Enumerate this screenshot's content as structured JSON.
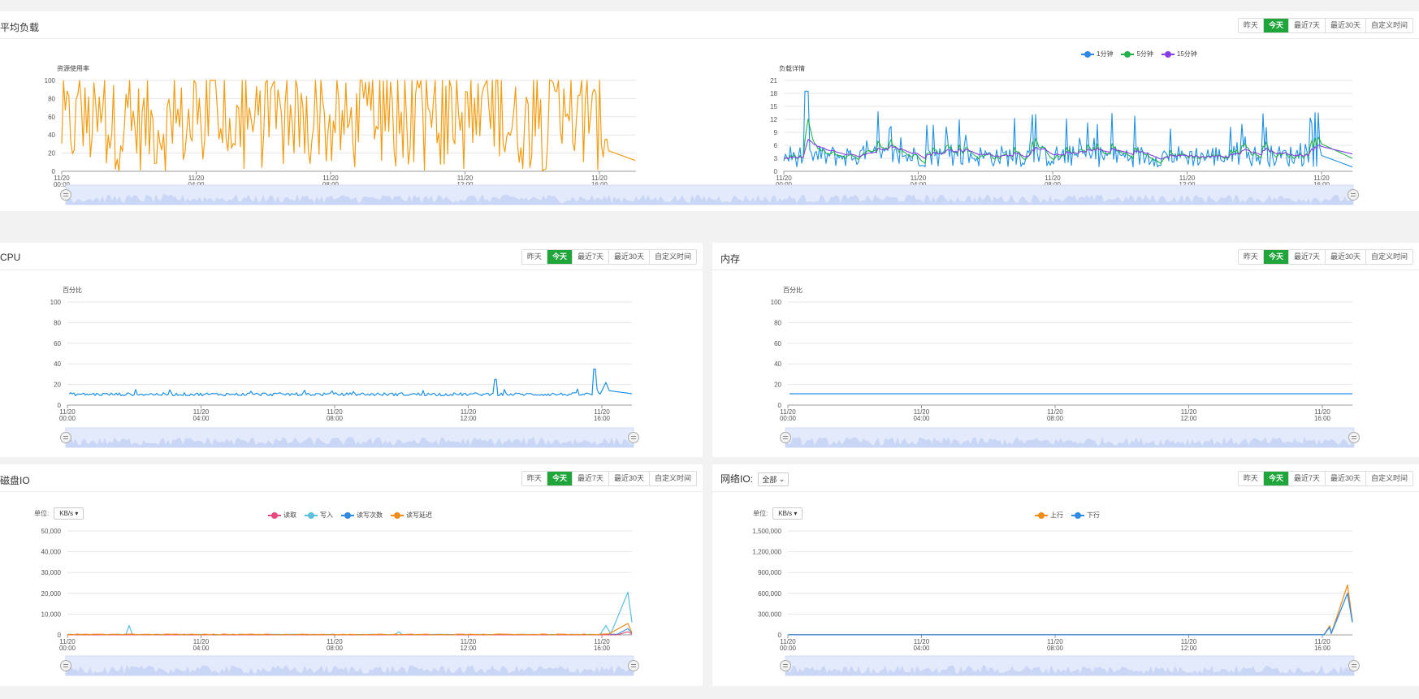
{
  "range_buttons": [
    "昨天",
    "今天",
    "最近7天",
    "最近30天",
    "自定义时间"
  ],
  "active_range": "今天",
  "load_panel": {
    "title": "平均负载",
    "left_chart": {
      "type": "line",
      "ylabel": "资源使用率",
      "yticks": [
        "100",
        "80",
        "60",
        "40",
        "20",
        "0"
      ],
      "ylim": [
        0,
        100
      ],
      "xticks": [
        "11/20\n00:00",
        "11/20\n04:00",
        "11/20\n08:00",
        "11/20\n12:00",
        "11/20\n16:00"
      ],
      "series": [
        {
          "color": "#f39c12",
          "values": "oscillating 0–100 from 00:00 to ~16:20, then declining to ~12"
        }
      ]
    },
    "right_chart": {
      "type": "line",
      "ylabel": "负载详情",
      "yticks": [
        "21",
        "18",
        "15",
        "12",
        "9",
        "6",
        "3",
        "0"
      ],
      "ylim": [
        0,
        21
      ],
      "legend": [
        "1分钟",
        "5分钟",
        "15分钟"
      ],
      "xticks": [
        "11/20\n00:00",
        "11/20\n04:00",
        "11/20\n08:00",
        "11/20\n12:00",
        "11/20\n16:00"
      ]
    }
  },
  "cpu_panel": {
    "title": "CPU",
    "ylabel": "百分比",
    "yticks": [
      "100",
      "80",
      "60",
      "40",
      "20",
      "0"
    ],
    "xticks": [
      "11/20\n00:00",
      "11/20\n04:00",
      "11/20\n08:00",
      "11/20\n12:00",
      "11/20\n16:00"
    ]
  },
  "memory_panel": {
    "title": "内存",
    "ylabel": "百分比",
    "yticks": [
      "100",
      "80",
      "60",
      "40",
      "20",
      "0"
    ],
    "xticks": [
      "11/20\n00:00",
      "11/20\n04:00",
      "11/20\n08:00",
      "11/20\n12:00",
      "11/20\n16:00"
    ]
  },
  "disk_panel": {
    "title": "磁盘IO",
    "unit_label": "单位:",
    "unit_value": "KB/s",
    "legend": [
      "读取",
      "写入",
      "读写次数",
      "读写延迟"
    ],
    "yticks": [
      "50,000",
      "40,000",
      "30,000",
      "20,000",
      "10,000",
      "0"
    ],
    "xticks": [
      "11/20\n00:00",
      "11/20\n04:00",
      "11/20\n08:00",
      "11/20\n12:00",
      "11/20\n16:00"
    ]
  },
  "network_panel": {
    "title": "网络IO:",
    "select_value": "全部",
    "unit_label": "单位:",
    "unit_value": "KB/s",
    "legend": [
      "上行",
      "下行"
    ],
    "yticks": [
      "1,500,000",
      "1,200,000",
      "900,000",
      "600,000",
      "300,000",
      "0"
    ],
    "xticks": [
      "11/20\n00:00",
      "11/20\n04:00",
      "11/20\n08:00",
      "11/20\n12:00",
      "11/20\n16:00"
    ]
  },
  "colors": {
    "accent_green": "#20a53a",
    "orange": "#f39c12",
    "blue": "#1e90e6",
    "green": "#22b14c",
    "purple": "#8a3ee6",
    "pink": "#e84a7f",
    "cyan": "#5bc0de",
    "legend_blue": "#2f8ae6",
    "legend_orange": "#f08c1a"
  }
}
